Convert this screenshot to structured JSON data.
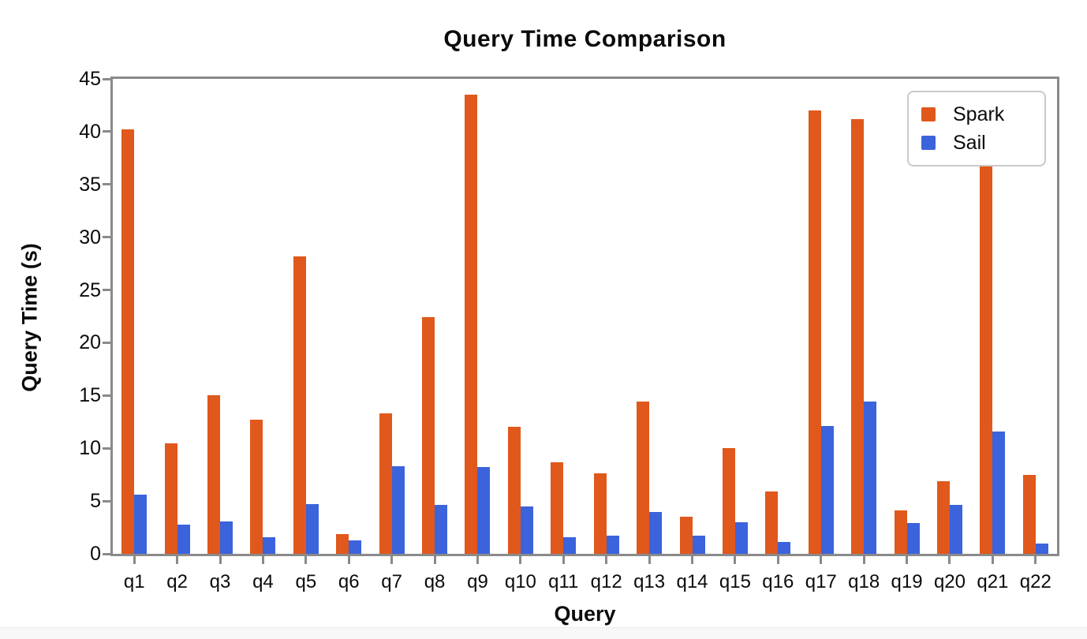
{
  "chart_data": {
    "type": "bar",
    "title": "Query Time Comparison",
    "xlabel": "Query",
    "ylabel": "Query Time (s)",
    "categories": [
      "q1",
      "q2",
      "q3",
      "q4",
      "q5",
      "q6",
      "q7",
      "q8",
      "q9",
      "q10",
      "q11",
      "q12",
      "q13",
      "q14",
      "q15",
      "q16",
      "q17",
      "q18",
      "q19",
      "q20",
      "q21",
      "q22"
    ],
    "series": [
      {
        "name": "Spark",
        "color": "#e0581c",
        "values": [
          40.2,
          10.5,
          15.0,
          12.7,
          28.2,
          1.9,
          13.3,
          22.4,
          43.5,
          12.0,
          8.7,
          7.6,
          14.4,
          3.5,
          10.0,
          5.9,
          42.0,
          41.2,
          4.1,
          6.9,
          37.2,
          7.5
        ]
      },
      {
        "name": "Sail",
        "color": "#3b63dc",
        "values": [
          5.6,
          2.8,
          3.1,
          1.6,
          4.7,
          1.3,
          8.3,
          4.6,
          8.2,
          4.5,
          1.6,
          1.7,
          4.0,
          1.7,
          3.0,
          1.1,
          12.1,
          14.4,
          2.9,
          4.6,
          11.6,
          1.0
        ]
      }
    ],
    "ylim": [
      0,
      45
    ],
    "yticks": [
      0,
      5,
      10,
      15,
      20,
      25,
      30,
      35,
      40,
      45
    ],
    "grid": false,
    "legend_position": "upper right"
  },
  "legend": {
    "entries": [
      {
        "label": "Spark"
      },
      {
        "label": "Sail"
      }
    ]
  },
  "colors": {
    "spark": "#e0581c",
    "sail": "#3b63dc",
    "axis_spine": "#8a8a8a"
  }
}
